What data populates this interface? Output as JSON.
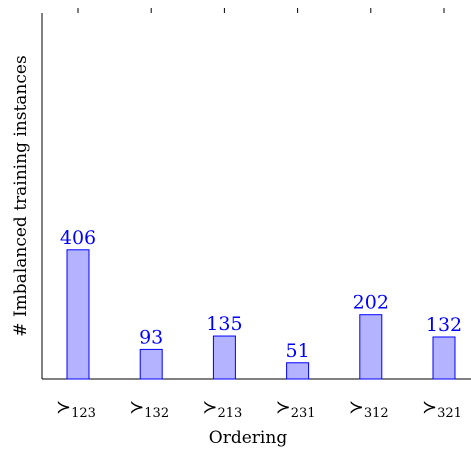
{
  "chart_data": {
    "type": "bar",
    "categories": [
      "≻123",
      "≻132",
      "≻213",
      "≻231",
      "≻312",
      "≻321"
    ],
    "tick_labels": [
      {
        "symbol": "≻",
        "sub": "123"
      },
      {
        "symbol": "≻",
        "sub": "132"
      },
      {
        "symbol": "≻",
        "sub": "213"
      },
      {
        "symbol": "≻",
        "sub": "231"
      },
      {
        "symbol": "≻",
        "sub": "312"
      },
      {
        "symbol": "≻",
        "sub": "321"
      }
    ],
    "values": [
      406,
      93,
      135,
      51,
      202,
      132
    ],
    "data_labels": [
      "406",
      "93",
      "135",
      "51",
      "202",
      "132"
    ],
    "xlabel": "Ordering",
    "ylabel": "# Imbalanced training instances",
    "ylim": [
      0,
      1150
    ],
    "grid": false,
    "colors": {
      "bar_fill": "#b3b3ff",
      "bar_stroke": "#0000ff",
      "label": "#0000ff"
    }
  }
}
